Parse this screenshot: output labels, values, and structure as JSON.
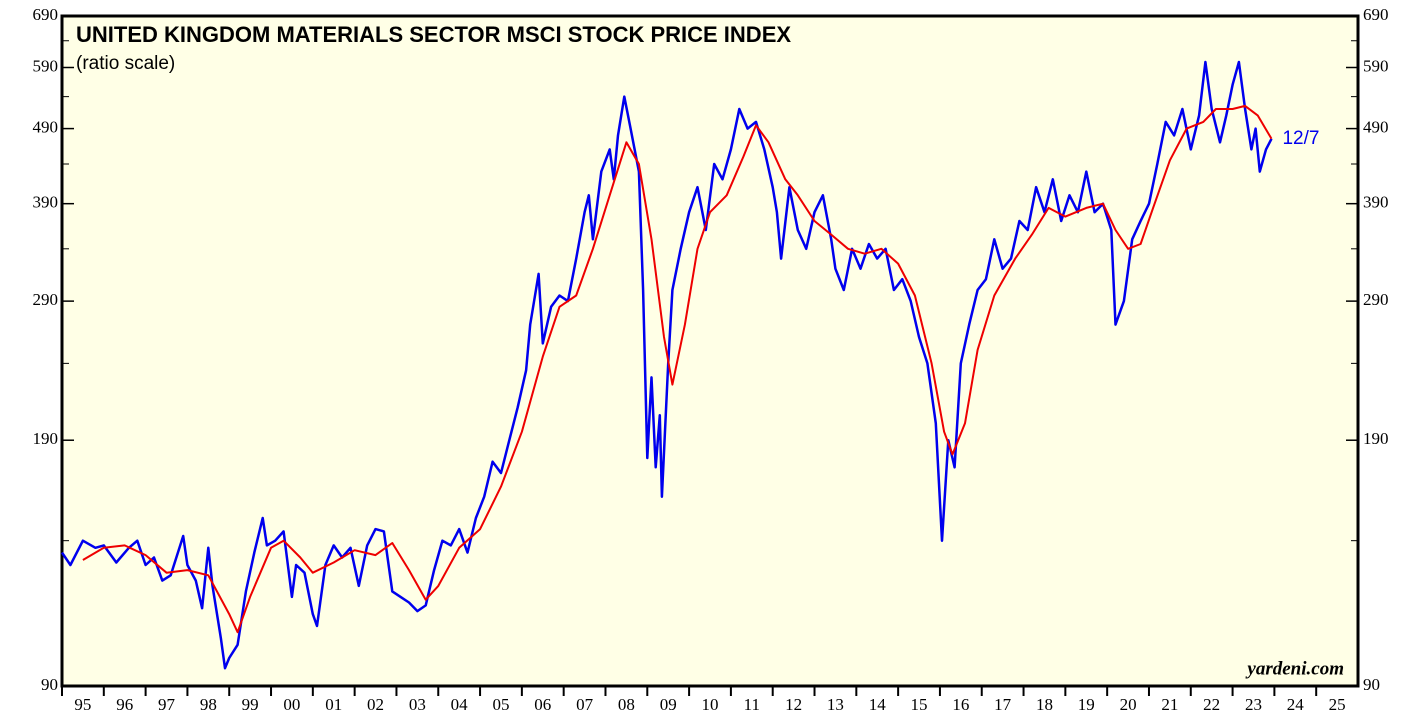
{
  "chart_data": {
    "type": "line",
    "title": "UNITED KINGDOM MATERIALS SECTOR MSCI STOCK PRICE INDEX",
    "subtitle": "(ratio scale)",
    "annotation": "12/7",
    "source": "yardeni.com",
    "log_scale": true,
    "ylim": [
      90,
      690
    ],
    "yticks": [
      90,
      190,
      290,
      390,
      490,
      590,
      690
    ],
    "yminor_ticks": [
      140,
      240,
      340,
      440,
      540,
      640
    ],
    "xlim": [
      1995,
      2026
    ],
    "xticks": [
      {
        "value": 1995,
        "label": "95"
      },
      {
        "value": 1996,
        "label": "96"
      },
      {
        "value": 1997,
        "label": "97"
      },
      {
        "value": 1998,
        "label": "98"
      },
      {
        "value": 1999,
        "label": "99"
      },
      {
        "value": 2000,
        "label": "00"
      },
      {
        "value": 2001,
        "label": "01"
      },
      {
        "value": 2002,
        "label": "02"
      },
      {
        "value": 2003,
        "label": "03"
      },
      {
        "value": 2004,
        "label": "04"
      },
      {
        "value": 2005,
        "label": "05"
      },
      {
        "value": 2006,
        "label": "06"
      },
      {
        "value": 2007,
        "label": "07"
      },
      {
        "value": 2008,
        "label": "08"
      },
      {
        "value": 2009,
        "label": "09"
      },
      {
        "value": 2010,
        "label": "10"
      },
      {
        "value": 2011,
        "label": "11"
      },
      {
        "value": 2012,
        "label": "12"
      },
      {
        "value": 2013,
        "label": "13"
      },
      {
        "value": 2014,
        "label": "14"
      },
      {
        "value": 2015,
        "label": "15"
      },
      {
        "value": 2016,
        "label": "16"
      },
      {
        "value": 2017,
        "label": "17"
      },
      {
        "value": 2018,
        "label": "18"
      },
      {
        "value": 2019,
        "label": "19"
      },
      {
        "value": 2020,
        "label": "20"
      },
      {
        "value": 2021,
        "label": "21"
      },
      {
        "value": 2022,
        "label": "22"
      },
      {
        "value": 2023,
        "label": "23"
      },
      {
        "value": 2024,
        "label": "24"
      },
      {
        "value": 2025,
        "label": "25"
      }
    ],
    "series": [
      {
        "color": "#0000ee",
        "x": [
          1995.0,
          1995.2,
          1995.5,
          1995.8,
          1996.0,
          1996.3,
          1996.6,
          1996.8,
          1997.0,
          1997.2,
          1997.4,
          1997.6,
          1997.9,
          1998.0,
          1998.2,
          1998.35,
          1998.5,
          1998.6,
          1998.8,
          1998.9,
          1999.0,
          1999.2,
          1999.4,
          1999.6,
          1999.8,
          1999.9,
          2000.1,
          2000.3,
          2000.5,
          2000.6,
          2000.8,
          2001.0,
          2001.1,
          2001.3,
          2001.5,
          2001.7,
          2001.9,
          2002.1,
          2002.3,
          2002.5,
          2002.7,
          2002.9,
          2003.1,
          2003.3,
          2003.5,
          2003.7,
          2003.9,
          2004.1,
          2004.3,
          2004.5,
          2004.7,
          2004.9,
          2005.1,
          2005.3,
          2005.5,
          2005.7,
          2005.9,
          2006.1,
          2006.2,
          2006.4,
          2006.5,
          2006.7,
          2006.9,
          2007.1,
          2007.3,
          2007.5,
          2007.6,
          2007.7,
          2007.9,
          2008.1,
          2008.2,
          2008.3,
          2008.45,
          2008.6,
          2008.8,
          2008.9,
          2009.0,
          2009.1,
          2009.2,
          2009.3,
          2009.35,
          2009.5,
          2009.6,
          2009.8,
          2010.0,
          2010.2,
          2010.4,
          2010.6,
          2010.8,
          2011.0,
          2011.2,
          2011.4,
          2011.6,
          2011.8,
          2012.0,
          2012.1,
          2012.2,
          2012.4,
          2012.6,
          2012.8,
          2013.0,
          2013.2,
          2013.4,
          2013.5,
          2013.7,
          2013.9,
          2014.1,
          2014.3,
          2014.5,
          2014.7,
          2014.9,
          2015.1,
          2015.3,
          2015.5,
          2015.7,
          2015.9,
          2016.05,
          2016.2,
          2016.35,
          2016.5,
          2016.7,
          2016.9,
          2017.1,
          2017.3,
          2017.5,
          2017.7,
          2017.9,
          2018.1,
          2018.3,
          2018.5,
          2018.7,
          2018.9,
          2019.1,
          2019.3,
          2019.5,
          2019.7,
          2019.9,
          2020.1,
          2020.2,
          2020.4,
          2020.6,
          2020.8,
          2021.0,
          2021.2,
          2021.4,
          2021.6,
          2021.8,
          2022.0,
          2022.2,
          2022.35,
          2022.5,
          2022.7,
          2022.85,
          2023.0,
          2023.15,
          2023.3,
          2023.45,
          2023.55,
          2023.65,
          2023.8,
          2023.93
        ],
        "values": [
          135,
          130,
          140,
          137,
          138,
          131,
          137,
          140,
          130,
          133,
          124,
          126,
          142,
          130,
          124,
          114,
          137,
          122,
          104,
          95,
          98,
          102,
          120,
          135,
          150,
          138,
          140,
          144,
          118,
          130,
          127,
          112,
          108,
          130,
          138,
          133,
          137,
          122,
          138,
          145,
          144,
          120,
          118,
          116,
          113,
          115,
          128,
          140,
          138,
          145,
          135,
          150,
          160,
          178,
          172,
          190,
          210,
          235,
          270,
          315,
          255,
          285,
          295,
          290,
          330,
          380,
          400,
          350,
          430,
          460,
          420,
          480,
          540,
          490,
          430,
          300,
          180,
          230,
          175,
          205,
          160,
          240,
          300,
          340,
          380,
          410,
          360,
          440,
          420,
          460,
          520,
          490,
          500,
          460,
          410,
          380,
          330,
          410,
          360,
          340,
          380,
          400,
          350,
          320,
          300,
          340,
          320,
          345,
          330,
          340,
          300,
          310,
          290,
          260,
          240,
          200,
          140,
          190,
          175,
          240,
          270,
          300,
          310,
          350,
          320,
          330,
          370,
          360,
          410,
          380,
          420,
          370,
          400,
          380,
          430,
          380,
          390,
          360,
          270,
          290,
          350,
          370,
          390,
          440,
          500,
          480,
          520,
          460,
          510,
          600,
          520,
          470,
          510,
          560,
          600,
          520,
          460,
          490,
          430,
          460,
          475
        ]
      },
      {
        "color": "#ee0000",
        "x": [
          1995.5,
          1996.0,
          1996.5,
          1997.0,
          1997.5,
          1998.0,
          1998.5,
          1999.0,
          1999.2,
          1999.5,
          2000.0,
          2000.3,
          2000.7,
          2001.0,
          2001.5,
          2002.0,
          2002.5,
          2002.9,
          2003.3,
          2003.7,
          2004.0,
          2004.5,
          2005.0,
          2005.5,
          2006.0,
          2006.5,
          2006.9,
          2007.3,
          2007.7,
          2008.1,
          2008.5,
          2008.8,
          2009.1,
          2009.4,
          2009.6,
          2009.9,
          2010.2,
          2010.5,
          2010.9,
          2011.3,
          2011.6,
          2011.9,
          2012.3,
          2012.6,
          2013.0,
          2013.4,
          2013.8,
          2014.2,
          2014.6,
          2015.0,
          2015.4,
          2015.8,
          2016.1,
          2016.3,
          2016.6,
          2016.9,
          2017.3,
          2017.8,
          2018.2,
          2018.6,
          2019.0,
          2019.5,
          2019.9,
          2020.2,
          2020.5,
          2020.8,
          2021.1,
          2021.5,
          2021.9,
          2022.3,
          2022.6,
          2023.0,
          2023.3,
          2023.6,
          2023.93
        ],
        "values": [
          132,
          137,
          138,
          134,
          127,
          128,
          126,
          112,
          106,
          118,
          137,
          140,
          133,
          127,
          131,
          136,
          134,
          139,
          128,
          117,
          122,
          137,
          145,
          165,
          195,
          245,
          285,
          295,
          340,
          400,
          470,
          440,
          350,
          260,
          225,
          270,
          340,
          380,
          400,
          450,
          495,
          470,
          420,
          400,
          370,
          355,
          340,
          335,
          340,
          325,
          295,
          240,
          195,
          182,
          200,
          250,
          295,
          330,
          355,
          385,
          375,
          385,
          390,
          360,
          340,
          345,
          385,
          445,
          490,
          500,
          520,
          520,
          525,
          510,
          475
        ]
      }
    ]
  }
}
